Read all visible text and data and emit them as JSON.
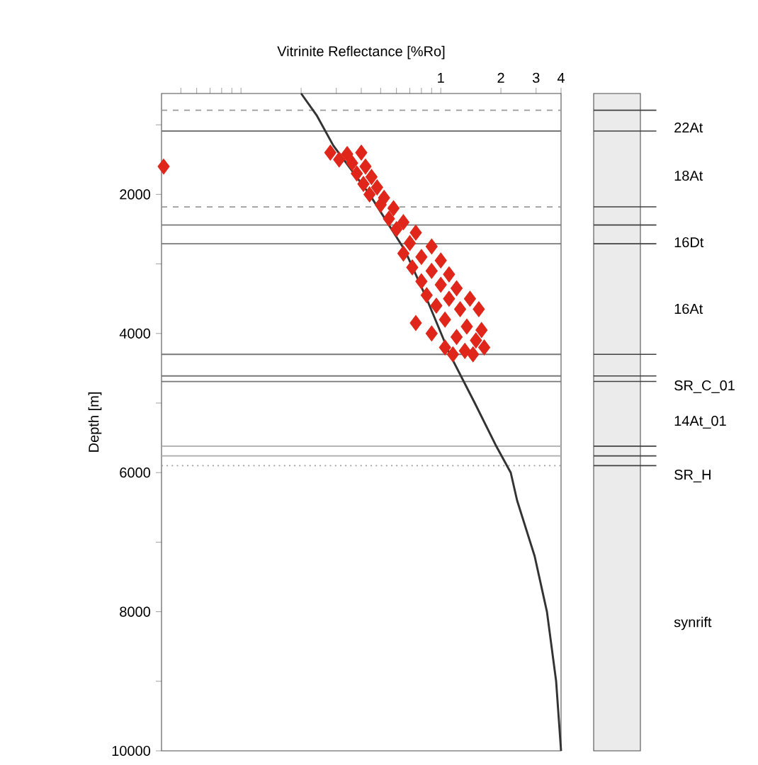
{
  "chart_data": {
    "type": "scatter",
    "xlabel": "Vitrinite Reflectance [%Ro]",
    "ylabel": "Depth [m]",
    "log": "x",
    "xlim": [
      0.04,
      4
    ],
    "ylim": [
      10000,
      550
    ],
    "xticks": [
      {
        "value": 0.05,
        "label": null
      },
      {
        "value": 0.06,
        "label": null
      },
      {
        "value": 0.07,
        "label": null
      },
      {
        "value": 0.08,
        "label": null
      },
      {
        "value": 0.09,
        "label": null
      },
      {
        "value": 0.1,
        "label": null
      },
      {
        "value": 0.2,
        "label": null
      },
      {
        "value": 0.3,
        "label": null
      },
      {
        "value": 0.4,
        "label": null
      },
      {
        "value": 0.5,
        "label": null
      },
      {
        "value": 0.6,
        "label": null
      },
      {
        "value": 0.7,
        "label": null
      },
      {
        "value": 0.8,
        "label": null
      },
      {
        "value": 0.9,
        "label": null
      },
      1,
      2,
      3,
      4
    ],
    "yticks": [
      {
        "value": 1000,
        "label": null
      },
      2000,
      {
        "value": 3000,
        "label": null
      },
      4000,
      {
        "value": 5000,
        "label": null
      },
      6000,
      {
        "value": 7000,
        "label": null
      },
      8000,
      {
        "value": 9000,
        "label": null
      },
      10000
    ],
    "series": [
      {
        "type": "line",
        "marker": "none",
        "color": "#333333",
        "x": [
          0.2,
          0.24,
          0.29,
          0.44,
          0.66,
          0.85,
          1.11,
          1.48,
          1.88,
          2.24,
          2.41,
          2.95,
          3.4,
          3.78,
          4.0
        ],
        "values": [
          550,
          870,
          1300,
          2000,
          2800,
          3500,
          4300,
          5000,
          5600,
          6000,
          6400,
          7200,
          8000,
          9000,
          10000
        ]
      },
      {
        "marker": "diamond",
        "color": "#e0261a",
        "x": [
          0.041,
          0.28,
          0.34,
          0.4,
          0.31,
          0.36,
          0.42,
          0.38,
          0.45,
          0.41,
          0.48,
          0.44,
          0.52,
          0.5,
          0.58,
          0.55,
          0.65,
          0.6,
          0.75,
          0.7,
          0.9,
          0.65,
          0.8,
          1.0,
          0.72,
          0.9,
          1.1,
          0.8,
          1.0,
          1.2,
          0.85,
          1.1,
          1.4,
          0.95,
          1.25,
          1.55,
          0.75,
          1.05,
          1.35,
          1.6,
          0.9,
          1.2,
          1.5,
          1.05,
          1.32,
          1.65,
          1.15,
          1.45
        ],
        "values": [
          1600,
          1400,
          1420,
          1400,
          1500,
          1550,
          1600,
          1700,
          1750,
          1850,
          1900,
          2000,
          2050,
          2150,
          2200,
          2350,
          2400,
          2500,
          2550,
          2700,
          2750,
          2850,
          2900,
          2950,
          3050,
          3100,
          3150,
          3250,
          3300,
          3350,
          3450,
          3500,
          3500,
          3600,
          3650,
          3650,
          3850,
          3800,
          3900,
          3950,
          4000,
          4050,
          4100,
          4200,
          4250,
          4200,
          4300,
          4300
        ]
      }
    ],
    "ref_lines": [
      {
        "axis": "y",
        "value": 790,
        "color": "#9a9a9a",
        "line_style": "dashed"
      },
      {
        "axis": "y",
        "value": 1090,
        "color": "#777777",
        "line_style": "solid"
      },
      {
        "axis": "y",
        "value": 2180,
        "color": "#9a9a9a",
        "line_style": "dashed"
      },
      {
        "axis": "y",
        "value": 2440,
        "color": "#777777",
        "line_style": "solid"
      },
      {
        "axis": "y",
        "value": 2710,
        "color": "#777777",
        "line_style": "solid"
      },
      {
        "axis": "y",
        "value": 4300,
        "color": "#777777",
        "line_style": "solid"
      },
      {
        "axis": "y",
        "value": 4610,
        "color": "#777777",
        "line_style": "solid"
      },
      {
        "axis": "y",
        "value": 4690,
        "color": "#777777",
        "line_style": "solid"
      },
      {
        "axis": "y",
        "value": 5620,
        "color": "#aaaaaa",
        "line_style": "solid"
      },
      {
        "axis": "y",
        "value": 5760,
        "color": "#aaaaaa",
        "line_style": "solid"
      },
      {
        "axis": "y",
        "value": 5900,
        "color": "#999999",
        "line_style": "dotted"
      }
    ],
    "annotations": [
      "22At",
      "18At",
      "16Dt",
      "16At",
      "SR_C_01",
      "14At_01",
      "SR_H",
      "synrift"
    ]
  }
}
